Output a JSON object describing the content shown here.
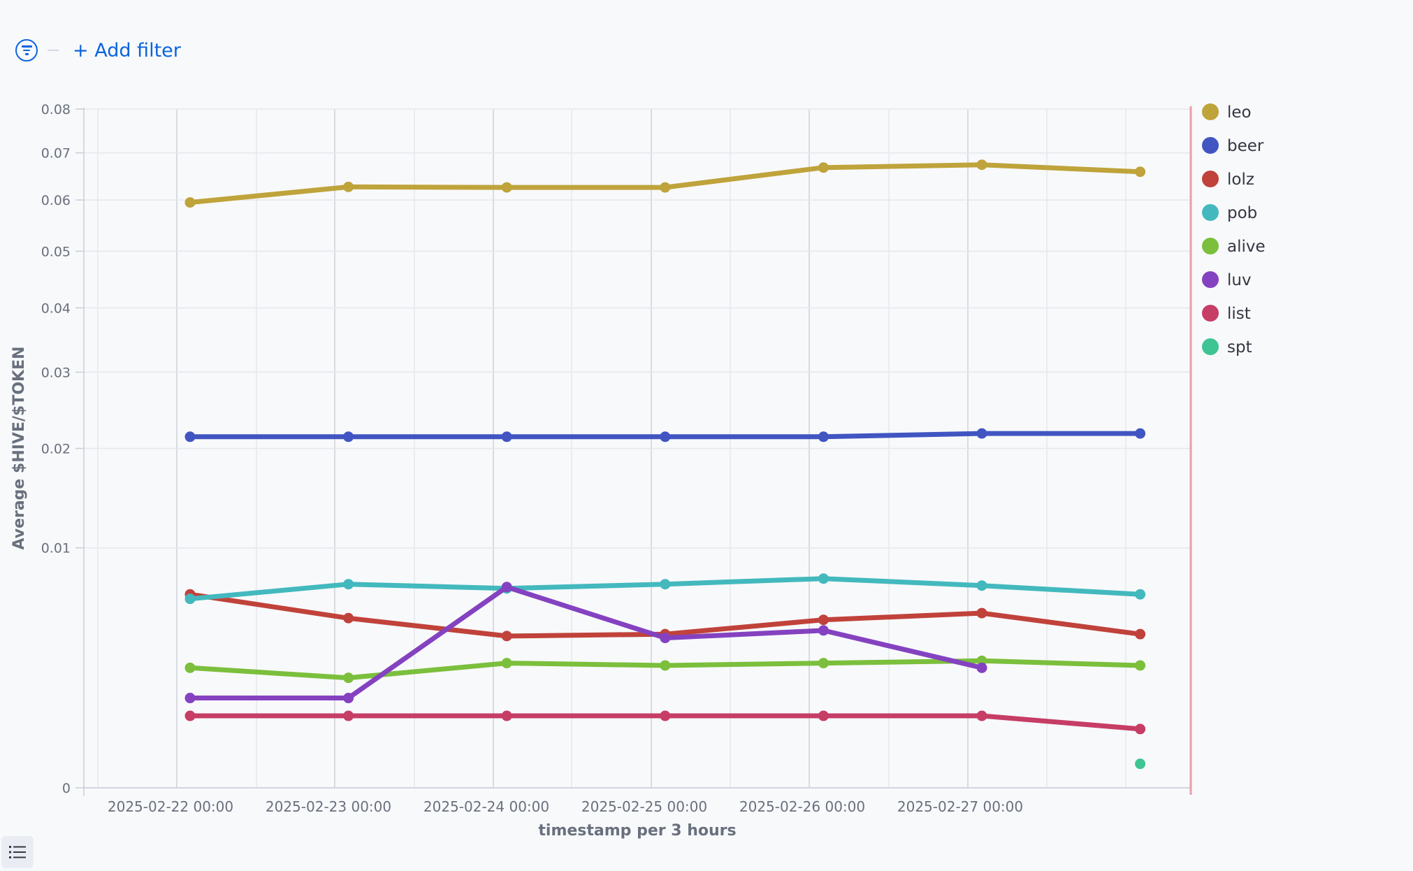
{
  "filter": {
    "add_label": "+ Add filter"
  },
  "chart_data": {
    "type": "line",
    "title": "",
    "xlabel": "timestamp per 3 hours",
    "ylabel": "Average $HIVE/$TOKEN",
    "yscale": "sqrt",
    "ylim": [
      0,
      0.08
    ],
    "y_ticks": [
      0,
      0.01,
      0.02,
      0.03,
      0.04,
      0.05,
      0.06,
      0.07,
      0.08
    ],
    "x_tick_labels": [
      "2025-02-22 00:00",
      "2025-02-23 00:00",
      "2025-02-24 00:00",
      "2025-02-25 00:00",
      "2025-02-26 00:00",
      "2025-02-27 00:00"
    ],
    "grid": true,
    "legend": "right",
    "series": [
      {
        "name": "leo",
        "color": "#bfa33b",
        "values": [
          0.0595,
          0.0627,
          0.0626,
          0.0626,
          0.0668,
          0.0674,
          0.0659
        ]
      },
      {
        "name": "beer",
        "color": "#4155c2",
        "values": [
          0.0214,
          0.0214,
          0.0214,
          0.0214,
          0.0214,
          0.0218,
          0.0218
        ]
      },
      {
        "name": "lolz",
        "color": "#c0423a",
        "values": [
          0.0065,
          0.005,
          0.004,
          0.0041,
          0.0049,
          0.0053,
          0.0041
        ]
      },
      {
        "name": "pob",
        "color": "#43b9be",
        "values": [
          0.0062,
          0.0072,
          0.0069,
          0.0072,
          0.0076,
          0.0071,
          0.0065
        ]
      },
      {
        "name": "alive",
        "color": "#7bbf3c",
        "values": [
          0.0025,
          0.0021,
          0.0027,
          0.0026,
          0.0027,
          0.0028,
          0.0026
        ]
      },
      {
        "name": "luv",
        "color": "#8442c0",
        "values": [
          0.0014,
          0.0014,
          0.007,
          0.0039,
          0.0043,
          0.0025,
          null
        ]
      },
      {
        "name": "list",
        "color": "#c63d66",
        "values": [
          0.0009,
          0.0009,
          0.0009,
          0.0009,
          0.0009,
          0.0009,
          0.0006
        ]
      },
      {
        "name": "spt",
        "color": "#3fc493",
        "values": [
          null,
          null,
          null,
          null,
          null,
          null,
          0.0001
        ]
      }
    ]
  }
}
